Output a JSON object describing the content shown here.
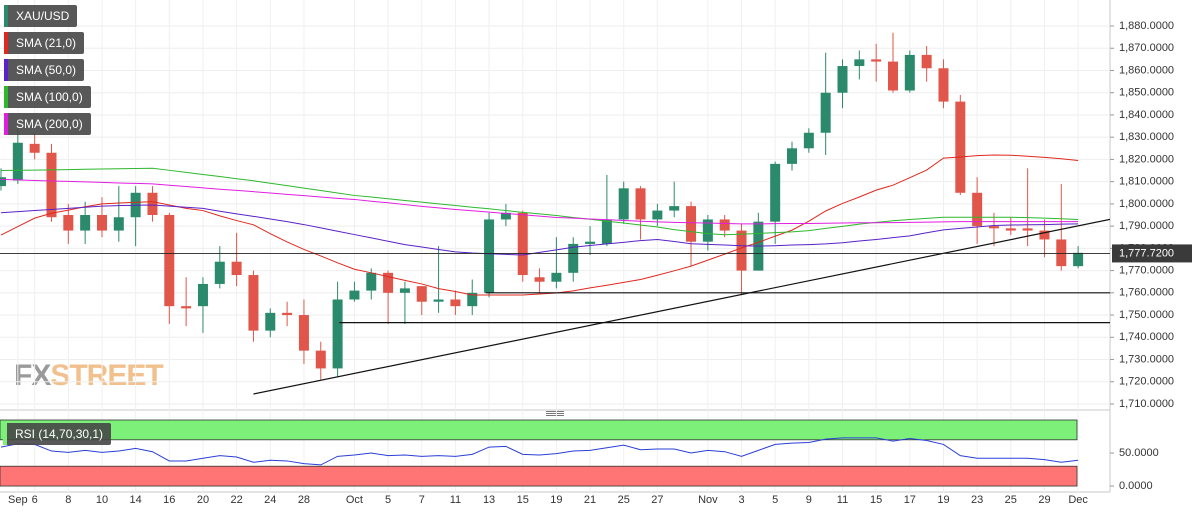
{
  "chart_data": [
    {
      "type": "candlestick",
      "name": "XAU/USD",
      "up_color": "#2b8a6c",
      "down_color": "#e0564a",
      "categories": [
        null,
        "Sep",
        "6",
        null,
        "8",
        null,
        "10",
        null,
        "14",
        null,
        "16",
        null,
        "20",
        null,
        "22",
        null,
        "24",
        null,
        "28",
        null,
        null,
        "Oct",
        null,
        "5",
        null,
        "7",
        null,
        "11",
        null,
        "13",
        null,
        "15",
        null,
        "19",
        null,
        "21",
        null,
        "25",
        null,
        "27",
        null,
        null,
        "Nov",
        null,
        "3",
        null,
        "5",
        null,
        "9",
        null,
        "11",
        null,
        "15",
        null,
        "17",
        null,
        "19",
        null,
        "23",
        null,
        "25",
        null,
        "29",
        null,
        "Dec"
      ],
      "open": [
        1808,
        1810.5,
        1827,
        1823,
        1795,
        1788,
        1795,
        1788,
        1794,
        1805,
        1795,
        1754,
        1754,
        1764,
        1774,
        1768,
        1743,
        1751,
        1750,
        1734,
        1726,
        1757,
        1761,
        1769,
        1760,
        1763,
        1756,
        1757,
        1754,
        1760,
        1793,
        1796,
        1767,
        1765,
        1769,
        1782,
        1782,
        1793,
        1807,
        1793,
        1797,
        1799,
        1783,
        1793,
        1788,
        1770,
        1792,
        1818,
        1825,
        1832,
        1850,
        1862,
        1865,
        1864,
        1851,
        1867,
        1861,
        1846,
        1805,
        1790,
        1789,
        1789,
        1788,
        1784,
        1772
      ],
      "high": [
        1816,
        1834,
        1832,
        1827,
        1800,
        1801,
        1803,
        1808,
        1808,
        1808,
        1796,
        1767,
        1767,
        1781,
        1787,
        1770,
        1753,
        1756,
        1757,
        1738,
        1765,
        1765,
        1771,
        1770,
        1765,
        1763,
        1781,
        1761,
        1766,
        1796,
        1800,
        1797,
        1771,
        1785,
        1785,
        1790,
        1813,
        1810,
        1808,
        1800,
        1810,
        1801,
        1795,
        1795,
        1791,
        1796,
        1819,
        1828,
        1834,
        1868,
        1865,
        1869,
        1872,
        1877,
        1869,
        1871,
        1865,
        1849,
        1812,
        1796,
        1794,
        1816,
        1793,
        1809,
        1781
      ],
      "low": [
        1806,
        1809,
        1820,
        1792,
        1782,
        1782,
        1785,
        1783,
        1781,
        1792,
        1746,
        1745,
        1742,
        1762,
        1763,
        1738,
        1740,
        1745,
        1728,
        1721,
        1722,
        1756,
        1757,
        1746,
        1746,
        1750,
        1751,
        1750,
        1750,
        1758,
        1790,
        1765,
        1760,
        1762,
        1765,
        1777,
        1781,
        1791,
        1784,
        1790,
        1794,
        1772,
        1779,
        1785,
        1759,
        1770,
        1782,
        1815,
        1823,
        1822,
        1843,
        1856,
        1855,
        1850,
        1850,
        1855,
        1843,
        1804,
        1782,
        1781,
        1786,
        1781,
        1776,
        1770,
        1771
      ],
      "close": [
        1812,
        1827.5,
        1823,
        1794,
        1788,
        1795,
        1788,
        1794,
        1805,
        1795,
        1754,
        1753,
        1764,
        1774,
        1768,
        1743,
        1751,
        1750,
        1734,
        1726,
        1757,
        1761,
        1769,
        1760,
        1762,
        1756,
        1757,
        1754,
        1760,
        1793,
        1796,
        1768,
        1765,
        1769,
        1782,
        1783,
        1793,
        1807,
        1793,
        1797,
        1799,
        1783,
        1793,
        1788,
        1770,
        1792,
        1818,
        1825,
        1832,
        1850,
        1862,
        1865,
        1864,
        1851,
        1867,
        1861,
        1846,
        1805,
        1790,
        1789,
        1788,
        1788,
        1784,
        1772,
        1778
      ],
      "series": [
        {
          "name": "SMA (21,0)",
          "color": "#e0281e",
          "values": [
            1786,
            1789.8,
            1793.6,
            1795.8,
            1797.2,
            1798.7,
            1800.0,
            1800.4,
            1800.7,
            1801.0,
            1799.5,
            1798.0,
            1797.0,
            1794.6,
            1792.5,
            1790.6,
            1786.6,
            1782.9,
            1779.5,
            1776.6,
            1773.5,
            1770.6,
            1769.0,
            1767.3,
            1765.6,
            1764.0,
            1761.9,
            1760.6,
            1759.0,
            1759.0,
            1759.0,
            1759.0,
            1759.5,
            1759.9,
            1760.9,
            1762.2,
            1763.4,
            1764.7,
            1766.0,
            1767.9,
            1769.9,
            1772.0,
            1774.7,
            1777.4,
            1780.2,
            1782.7,
            1785.5,
            1788.2,
            1792.2,
            1796.8,
            1800.2,
            1803.1,
            1806.2,
            1808.4,
            1811.8,
            1815.2,
            1820.6,
            1821.1,
            1821.7,
            1822.0,
            1821.9,
            1821.4,
            1820.9,
            1820.3,
            1819.5
          ]
        },
        {
          "name": "SMA (50,0)",
          "color": "#5a22c8",
          "values": [
            1796.0,
            1796.5,
            1797.0,
            1797.5,
            1798.0,
            1798.5,
            1799.0,
            1799.2,
            1799.4,
            1799.5,
            1799.0,
            1798.5,
            1798.0,
            1796.7,
            1795.5,
            1794.4,
            1793.2,
            1792.0,
            1790.7,
            1789.2,
            1787.7,
            1786.2,
            1784.7,
            1783.2,
            1781.7,
            1780.6,
            1779.5,
            1778.4,
            1777.9,
            1777.6,
            1777.3,
            1777.0,
            1778.2,
            1779.3,
            1780.5,
            1781.3,
            1782.0,
            1782.7,
            1783.5,
            1784.0,
            1783.1,
            1782.1,
            1781.8,
            1781.5,
            1781.2,
            1781.0,
            1781.2,
            1781.5,
            1781.7,
            1782.0,
            1782.5,
            1783.3,
            1784.0,
            1784.8,
            1785.6,
            1787.0,
            1788.3,
            1789.0,
            1789.6,
            1790.3,
            1790.5,
            1790.6,
            1790.7,
            1790.9,
            1791.0
          ]
        },
        {
          "name": "SMA (100,0)",
          "color": "#2db82d",
          "values": [
            1815.0,
            1815.1,
            1815.2,
            1815.3,
            1815.4,
            1815.6,
            1815.7,
            1815.8,
            1815.9,
            1816.0,
            1815.1,
            1814.2,
            1813.2,
            1812.3,
            1811.3,
            1810.4,
            1809.3,
            1808.2,
            1807.1,
            1806.0,
            1804.9,
            1803.8,
            1803.1,
            1802.3,
            1801.5,
            1800.8,
            1800.0,
            1799.3,
            1798.5,
            1797.8,
            1797.0,
            1796.2,
            1795.5,
            1794.8,
            1793.9,
            1793.1,
            1792.2,
            1791.4,
            1790.5,
            1789.6,
            1788.4,
            1787.5,
            1786.6,
            1786.1,
            1786.4,
            1786.7,
            1787.1,
            1787.4,
            1788.0,
            1789.0,
            1789.9,
            1790.9,
            1791.7,
            1792.4,
            1793.0,
            1793.5,
            1794.0,
            1794.0,
            1794.0,
            1794.0,
            1794.0,
            1793.8,
            1793.6,
            1793.3,
            1793.0
          ]
        },
        {
          "name": "SMA (200,0)",
          "color": "#e01ee0",
          "values": [
            1811.0,
            1810.8,
            1810.5,
            1810.3,
            1810.1,
            1809.9,
            1809.7,
            1809.4,
            1809.2,
            1809.0,
            1808.4,
            1807.8,
            1807.2,
            1806.6,
            1806.1,
            1805.5,
            1804.9,
            1804.3,
            1803.7,
            1803.1,
            1802.5,
            1802.0,
            1801.2,
            1800.5,
            1799.7,
            1798.9,
            1798.2,
            1797.5,
            1796.9,
            1796.3,
            1795.7,
            1795.1,
            1794.5,
            1793.9,
            1793.6,
            1793.2,
            1792.9,
            1792.5,
            1792.2,
            1791.9,
            1791.7,
            1791.5,
            1791.4,
            1791.2,
            1791.0,
            1791.0,
            1791.1,
            1791.2,
            1791.2,
            1791.3,
            1791.4,
            1791.5,
            1791.5,
            1791.6,
            1791.7,
            1791.8,
            1791.9,
            1792.0,
            1792.0,
            1792.0,
            1792.0,
            1792.0,
            1792.0,
            1792.0,
            1792.0
          ]
        }
      ],
      "trendlines": [
        {
          "x": [
            15,
            66
          ],
          "y": [
            1714.5,
            1793.2
          ]
        },
        {
          "x": [
            28.8,
            66
          ],
          "y": [
            1760,
            1760
          ]
        },
        {
          "x": [
            20.1,
            66
          ],
          "y": [
            1746.6,
            1746.6
          ]
        }
      ],
      "last_price": {
        "value": 1777.72,
        "label": "1,777.7200"
      },
      "ylim": [
        1707.3,
        1891.7
      ],
      "yticks": [
        {
          "value": 1710,
          "label": "1,710.0000"
        },
        {
          "value": 1720,
          "label": "1,720.0000"
        },
        {
          "value": 1730,
          "label": "1,730.0000"
        },
        {
          "value": 1740,
          "label": "1,740.0000"
        },
        {
          "value": 1750,
          "label": "1,750.0000"
        },
        {
          "value": 1760,
          "label": "1,760.0000"
        },
        {
          "value": 1770,
          "label": "1,770.0000"
        },
        {
          "value": 1780,
          "label": "1,780.0000"
        },
        {
          "value": 1790,
          "label": "1,790.0000"
        },
        {
          "value": 1800,
          "label": "1,800.0000"
        },
        {
          "value": 1810,
          "label": "1,810.0000"
        },
        {
          "value": 1820,
          "label": "1,820.0000"
        },
        {
          "value": 1830,
          "label": "1,830.0000"
        },
        {
          "value": 1840,
          "label": "1,840.0000"
        },
        {
          "value": 1850,
          "label": "1,850.0000"
        },
        {
          "value": 1860,
          "label": "1,860.0000"
        },
        {
          "value": 1870,
          "label": "1,870.0000"
        },
        {
          "value": 1880,
          "label": "1,880.0000"
        }
      ],
      "grid": true,
      "logo": {
        "left": "FX",
        "right": "STREET"
      }
    },
    {
      "type": "line",
      "series": [
        {
          "name": "RSI (14,70,30,1)",
          "color": "#2a3fd8",
          "values": [
            59,
            64,
            63,
            53,
            51,
            54,
            51,
            53,
            57,
            52,
            38,
            38,
            42,
            46,
            44,
            36,
            39,
            38,
            34,
            32,
            45,
            47,
            50,
            46,
            47,
            45,
            46,
            45,
            48,
            59,
            60,
            48,
            47,
            49,
            53,
            54,
            58,
            62,
            55,
            56,
            56,
            50,
            54,
            52,
            45,
            54,
            63,
            65,
            66,
            71,
            73,
            73,
            73,
            68,
            72,
            69,
            63,
            46,
            42,
            42,
            42,
            42,
            40,
            36,
            39
          ]
        }
      ],
      "bands": [
        {
          "from": 70,
          "to": 100,
          "color": "#7df07a"
        },
        {
          "from": 0,
          "to": 30,
          "color": "#ff7474"
        }
      ],
      "ylim": [
        -6,
        100
      ],
      "yticks": [
        {
          "value": 50,
          "label": "50.0000"
        },
        {
          "value": 0,
          "label": "0.0000"
        }
      ]
    }
  ]
}
